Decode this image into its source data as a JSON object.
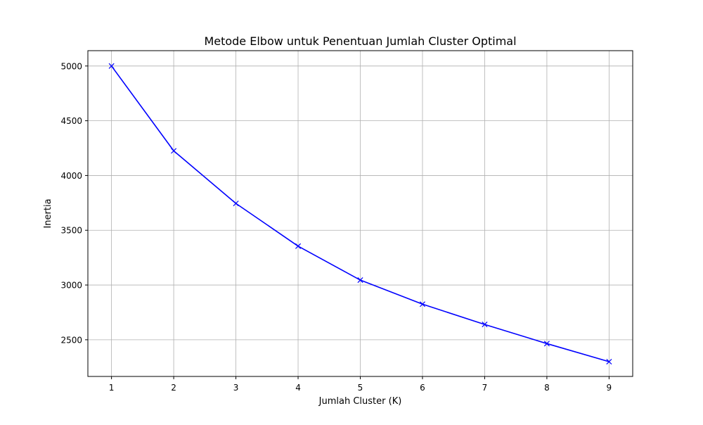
{
  "chart_data": {
    "type": "line",
    "title": "Metode Elbow untuk Penentuan Jumlah Cluster Optimal",
    "xlabel": "Jumlah Cluster (K)",
    "ylabel": "Inertia",
    "xlim": [
      0.62,
      9.38
    ],
    "ylim": [
      2165,
      5140
    ],
    "xticks": [
      1,
      2,
      3,
      4,
      5,
      6,
      7,
      8,
      9
    ],
    "yticks": [
      2500,
      3000,
      3500,
      4000,
      4500,
      5000
    ],
    "grid": true,
    "series": [
      {
        "color": "#0000ff",
        "marker": "x",
        "x": [
          1,
          2,
          3,
          4,
          5,
          6,
          7,
          8,
          9
        ],
        "y": [
          5000,
          4225,
          3745,
          3355,
          3045,
          2825,
          2640,
          2465,
          2300
        ]
      }
    ]
  }
}
